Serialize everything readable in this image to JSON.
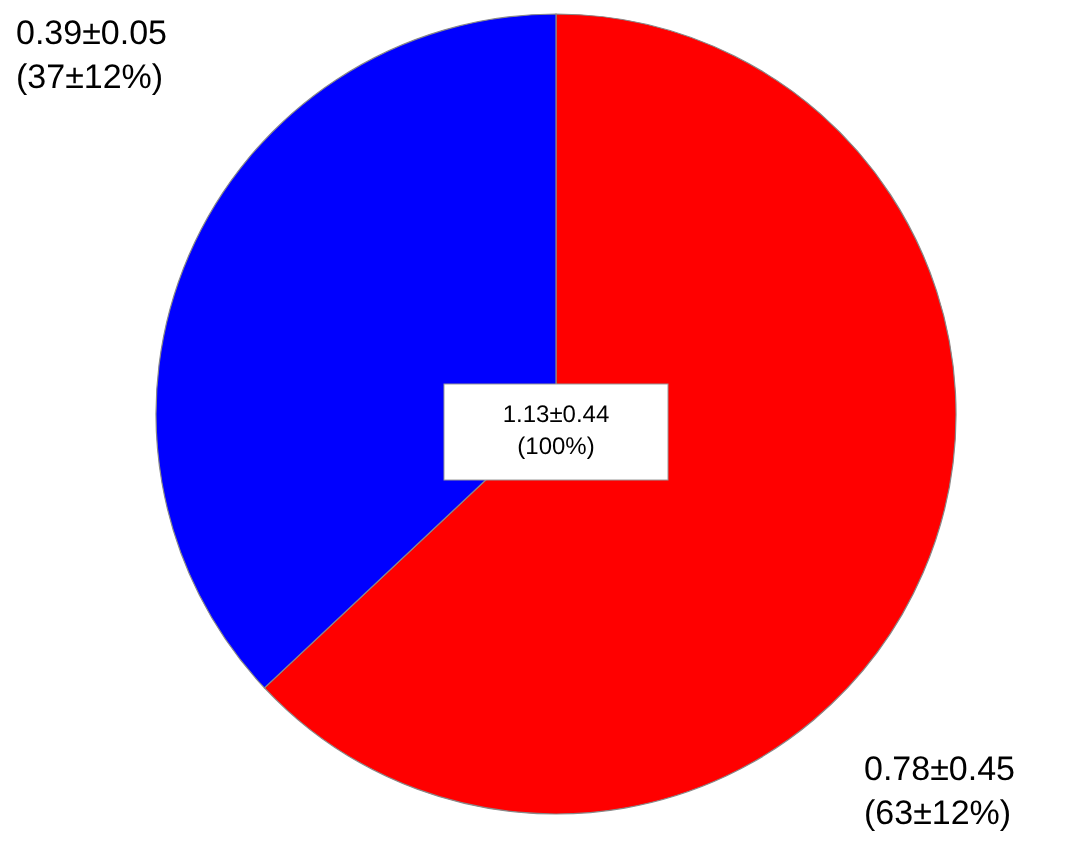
{
  "chart_data": {
    "type": "pie",
    "categories": [
      null,
      null
    ],
    "values": [
      63,
      37
    ],
    "colors": [
      "#ff0000",
      "#0000ff"
    ],
    "value_labels": [
      "0.78±0.45\n(63±12%)",
      "0.39±0.05\n(37±12%)"
    ],
    "annotations": [
      "1.13±0.44\n(100%)"
    ]
  }
}
